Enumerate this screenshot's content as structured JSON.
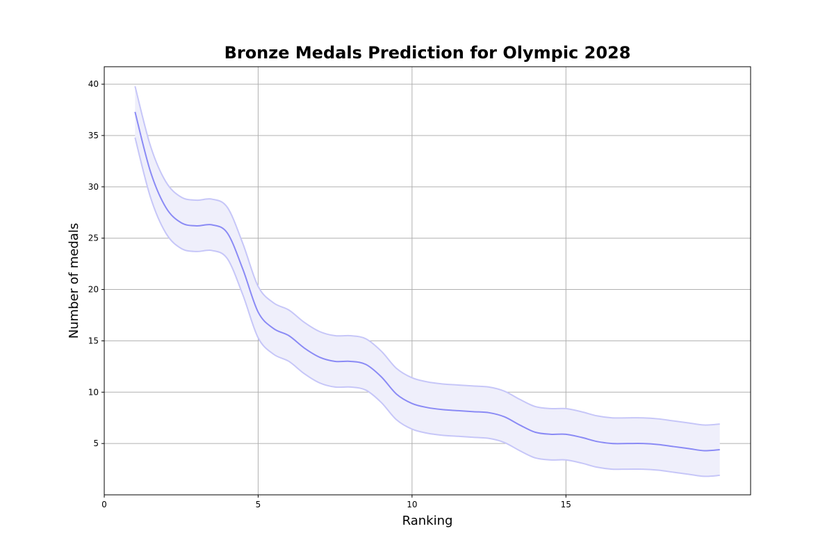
{
  "chart_data": {
    "type": "line",
    "title": "Bronze Medals Prediction for Olympic 2028",
    "xlabel": "Ranking",
    "ylabel": "Number of medals",
    "xlim": [
      0,
      21
    ],
    "ylim": [
      0,
      41.7
    ],
    "x_ticks": [
      0,
      5,
      10,
      15
    ],
    "y_ticks": [
      5,
      10,
      15,
      20,
      25,
      30,
      35,
      40
    ],
    "grid": true,
    "legend": "none",
    "colors": {
      "line": "#8a8af5",
      "band": "#efeffb",
      "band_edge": "#c6c6f8"
    },
    "x": [
      1,
      1.5,
      2,
      2.5,
      3,
      3.5,
      4,
      4.5,
      5,
      5.5,
      6,
      6.5,
      7,
      7.5,
      8,
      8.5,
      9,
      9.5,
      10,
      10.5,
      11,
      11.5,
      12,
      12.5,
      13,
      13.5,
      14,
      14.5,
      15,
      15.5,
      16,
      16.5,
      17,
      17.5,
      18,
      18.5,
      19,
      19.5,
      20
    ],
    "series": [
      {
        "values": [
          37.3,
          31.5,
          28.0,
          26.5,
          26.2,
          26.3,
          25.5,
          22.0,
          17.8,
          16.2,
          15.5,
          14.3,
          13.4,
          13.0,
          13.0,
          12.7,
          11.5,
          9.8,
          8.9,
          8.5,
          8.3,
          8.2,
          8.1,
          8.0,
          7.6,
          6.8,
          6.1,
          5.9,
          5.9,
          5.6,
          5.2,
          5.0,
          5.0,
          5.0,
          4.9,
          4.7,
          4.5,
          4.3,
          4.4
        ],
        "lower": [
          34.8,
          29.0,
          25.5,
          24.0,
          23.7,
          23.8,
          23.0,
          19.5,
          15.3,
          13.7,
          13.0,
          11.8,
          10.9,
          10.5,
          10.5,
          10.2,
          9.0,
          7.3,
          6.4,
          6.0,
          5.8,
          5.7,
          5.6,
          5.5,
          5.1,
          4.3,
          3.6,
          3.4,
          3.4,
          3.1,
          2.7,
          2.5,
          2.5,
          2.5,
          2.4,
          2.2,
          2.0,
          1.8,
          1.9
        ],
        "upper": [
          39.8,
          34.0,
          30.5,
          29.0,
          28.7,
          28.8,
          28.0,
          24.5,
          20.3,
          18.7,
          18.0,
          16.8,
          15.9,
          15.5,
          15.5,
          15.2,
          14.0,
          12.3,
          11.4,
          11.0,
          10.8,
          10.7,
          10.6,
          10.5,
          10.1,
          9.3,
          8.6,
          8.4,
          8.4,
          8.1,
          7.7,
          7.5,
          7.5,
          7.5,
          7.4,
          7.2,
          7.0,
          6.8,
          6.9
        ]
      }
    ]
  }
}
